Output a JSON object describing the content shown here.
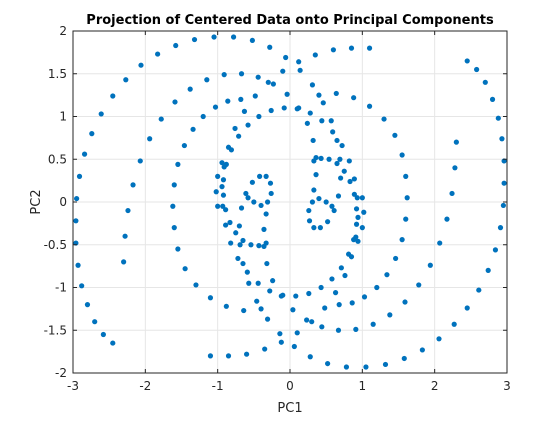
{
  "chart_data": {
    "type": "scatter",
    "title": "Projection of Centered Data onto Principal Components",
    "xlabel": "PC1",
    "ylabel": "PC2",
    "xlim": [
      -3,
      3
    ],
    "ylim": [
      -2,
      2
    ],
    "xticks": [
      -3,
      -2,
      -1,
      0,
      1,
      2,
      3
    ],
    "yticks": [
      -2,
      -1.5,
      -1,
      -0.5,
      0,
      0.5,
      1,
      1.5,
      2
    ],
    "xtick_labels": [
      "-3",
      "-2",
      "-1",
      "0",
      "1",
      "2",
      "3"
    ],
    "ytick_labels": [
      "-2",
      "-1.5",
      "-1",
      "-0.5",
      "0",
      "0.5",
      "1",
      "1.5",
      "2"
    ],
    "grid": true,
    "marker_color": "#0072BD",
    "series": [
      {
        "points": [
          [
            -2.45,
            -1.65
          ],
          [
            -2.58,
            -1.55
          ],
          [
            -2.7,
            -1.4
          ],
          [
            -2.8,
            -1.2
          ],
          [
            -2.88,
            -0.98
          ],
          [
            -2.93,
            -0.74
          ],
          [
            -2.96,
            -0.48
          ],
          [
            -2.96,
            -0.22
          ],
          [
            -2.95,
            0.04
          ],
          [
            -2.91,
            0.3
          ],
          [
            -2.84,
            0.56
          ],
          [
            -2.74,
            0.8
          ],
          [
            -2.61,
            1.03
          ],
          [
            -2.45,
            1.24
          ],
          [
            -2.27,
            1.43
          ],
          [
            -2.06,
            1.6
          ],
          [
            -1.83,
            1.73
          ],
          [
            -1.58,
            1.83
          ],
          [
            -1.32,
            1.9
          ],
          [
            -1.05,
            1.93
          ],
          [
            -0.78,
            1.93
          ],
          [
            -0.52,
            1.89
          ],
          [
            -0.28,
            1.81
          ],
          [
            -0.06,
            1.69
          ],
          [
            0.14,
            1.54
          ],
          [
            0.31,
            1.37
          ],
          [
            0.46,
            1.16
          ],
          [
            0.57,
            0.95
          ],
          [
            0.65,
            0.72
          ],
          [
            0.69,
            0.5
          ],
          [
            0.7,
            0.28
          ],
          [
            0.67,
            0.07
          ],
          [
            0.61,
            -0.1
          ],
          [
            0.52,
            -0.23
          ],
          [
            0.42,
            -0.3
          ],
          [
            0.33,
            -0.3
          ],
          [
            0.27,
            -0.22
          ],
          [
            0.26,
            -0.1
          ],
          [
            0.31,
            0.0
          ],
          [
            0.4,
            0.04
          ],
          [
            0.5,
            0.0
          ],
          [
            0.58,
            -0.05
          ],
          [
            2.45,
            1.65
          ],
          [
            2.58,
            1.55
          ],
          [
            2.7,
            1.4
          ],
          [
            2.8,
            1.2
          ],
          [
            2.88,
            0.98
          ],
          [
            2.93,
            0.74
          ],
          [
            2.96,
            0.48
          ],
          [
            2.96,
            0.22
          ],
          [
            2.95,
            -0.04
          ],
          [
            2.91,
            -0.3
          ],
          [
            2.84,
            -0.56
          ],
          [
            2.74,
            -0.8
          ],
          [
            2.61,
            -1.03
          ],
          [
            2.45,
            -1.24
          ],
          [
            2.27,
            -1.43
          ],
          [
            2.06,
            -1.6
          ],
          [
            1.83,
            -1.73
          ],
          [
            1.58,
            -1.83
          ],
          [
            1.32,
            -1.9
          ],
          [
            1.05,
            -1.93
          ],
          [
            0.78,
            -1.93
          ],
          [
            0.52,
            -1.89
          ],
          [
            0.28,
            -1.81
          ],
          [
            0.06,
            -1.69
          ],
          [
            -0.14,
            -1.54
          ],
          [
            -0.31,
            -1.37
          ],
          [
            -0.46,
            -1.16
          ],
          [
            -0.57,
            -0.95
          ],
          [
            -0.65,
            -0.72
          ],
          [
            -0.69,
            -0.5
          ],
          [
            -0.7,
            -0.28
          ],
          [
            -0.67,
            -0.07
          ],
          [
            -0.61,
            0.1
          ],
          [
            -0.52,
            0.23
          ],
          [
            -0.42,
            0.3
          ],
          [
            -0.33,
            0.3
          ],
          [
            -0.27,
            0.22
          ],
          [
            -0.26,
            0.1
          ],
          [
            -0.31,
            0.0
          ],
          [
            -0.4,
            -0.04
          ],
          [
            -0.5,
            0.0
          ],
          [
            -0.58,
            0.05
          ],
          [
            -1.1,
            -1.8
          ],
          [
            -0.85,
            -1.8
          ],
          [
            -0.6,
            -1.78
          ],
          [
            -0.35,
            -1.72
          ],
          [
            -0.12,
            -1.64
          ],
          [
            0.1,
            -1.53
          ],
          [
            0.3,
            -1.4
          ],
          [
            0.48,
            -1.24
          ],
          [
            0.63,
            -1.06
          ],
          [
            0.76,
            -0.86
          ],
          [
            0.85,
            -0.64
          ],
          [
            0.91,
            -0.41
          ],
          [
            0.94,
            -0.18
          ],
          [
            0.93,
            0.05
          ],
          [
            0.89,
            0.27
          ],
          [
            0.82,
            0.48
          ],
          [
            0.72,
            0.66
          ],
          [
            0.59,
            0.82
          ],
          [
            0.44,
            0.95
          ],
          [
            0.28,
            1.04
          ],
          [
            0.1,
            1.09
          ],
          [
            -0.08,
            1.1
          ],
          [
            -0.26,
            1.07
          ],
          [
            -0.43,
            1.0
          ],
          [
            -0.58,
            0.9
          ],
          [
            -0.71,
            0.77
          ],
          [
            -0.81,
            0.61
          ],
          [
            -0.88,
            0.44
          ],
          [
            -0.92,
            0.26
          ],
          [
            -0.92,
            0.08
          ],
          [
            -0.89,
            -0.09
          ],
          [
            -0.83,
            -0.24
          ],
          [
            -0.75,
            -0.36
          ],
          [
            -0.65,
            -0.45
          ],
          [
            -0.54,
            -0.5
          ],
          [
            -0.43,
            -0.51
          ],
          [
            -0.33,
            -0.48
          ],
          [
            1.1,
            1.8
          ],
          [
            0.85,
            1.8
          ],
          [
            0.6,
            1.78
          ],
          [
            0.35,
            1.72
          ],
          [
            0.12,
            1.64
          ],
          [
            -0.1,
            1.53
          ],
          [
            -0.3,
            1.4
          ],
          [
            -0.48,
            1.24
          ],
          [
            -0.63,
            1.06
          ],
          [
            -0.76,
            0.86
          ],
          [
            -0.85,
            0.64
          ],
          [
            -0.91,
            0.41
          ],
          [
            -0.94,
            0.18
          ],
          [
            -0.93,
            -0.05
          ],
          [
            -0.89,
            -0.27
          ],
          [
            -0.82,
            -0.48
          ],
          [
            -0.72,
            -0.66
          ],
          [
            -0.59,
            -0.82
          ],
          [
            -0.44,
            -0.95
          ],
          [
            -0.28,
            -1.04
          ],
          [
            -0.1,
            -1.09
          ],
          [
            0.08,
            -1.1
          ],
          [
            0.26,
            -1.07
          ],
          [
            0.43,
            -1.0
          ],
          [
            0.58,
            -0.9
          ],
          [
            0.71,
            -0.77
          ],
          [
            0.81,
            -0.61
          ],
          [
            0.88,
            -0.44
          ],
          [
            0.92,
            -0.26
          ],
          [
            0.92,
            -0.08
          ],
          [
            0.89,
            0.09
          ],
          [
            0.83,
            0.24
          ],
          [
            0.75,
            0.36
          ],
          [
            0.65,
            0.45
          ],
          [
            0.54,
            0.5
          ],
          [
            0.43,
            0.51
          ],
          [
            0.33,
            0.48
          ],
          [
            -2.3,
            -0.7
          ],
          [
            -2.28,
            -0.4
          ],
          [
            -2.24,
            -0.1
          ],
          [
            -2.17,
            0.2
          ],
          [
            -2.07,
            0.48
          ],
          [
            -1.94,
            0.74
          ],
          [
            -1.78,
            0.97
          ],
          [
            -1.59,
            1.17
          ],
          [
            -1.38,
            1.32
          ],
          [
            -1.15,
            1.43
          ],
          [
            -0.91,
            1.49
          ],
          [
            -0.67,
            1.5
          ],
          [
            -0.44,
            1.46
          ],
          [
            -0.23,
            1.38
          ],
          [
            -0.04,
            1.26
          ],
          [
            0.12,
            1.1
          ],
          [
            0.24,
            0.92
          ],
          [
            0.32,
            0.72
          ],
          [
            0.36,
            0.52
          ],
          [
            0.36,
            0.32
          ],
          [
            0.33,
            0.14
          ],
          [
            2.3,
            0.7
          ],
          [
            2.28,
            0.4
          ],
          [
            2.24,
            0.1
          ],
          [
            2.17,
            -0.2
          ],
          [
            2.07,
            -0.48
          ],
          [
            1.94,
            -0.74
          ],
          [
            1.78,
            -0.97
          ],
          [
            1.59,
            -1.17
          ],
          [
            1.38,
            -1.32
          ],
          [
            1.15,
            -1.43
          ],
          [
            0.91,
            -1.49
          ],
          [
            0.67,
            -1.5
          ],
          [
            0.44,
            -1.46
          ],
          [
            0.23,
            -1.38
          ],
          [
            0.04,
            -1.26
          ],
          [
            -0.12,
            -1.1
          ],
          [
            -0.24,
            -0.92
          ],
          [
            -0.32,
            -0.72
          ],
          [
            -0.36,
            -0.52
          ],
          [
            -0.36,
            -0.32
          ],
          [
            -0.33,
            -0.14
          ],
          [
            -1.6,
            -0.3
          ],
          [
            -1.62,
            -0.05
          ],
          [
            -1.6,
            0.2
          ],
          [
            -1.55,
            0.44
          ],
          [
            -1.46,
            0.66
          ],
          [
            -1.34,
            0.85
          ],
          [
            -1.2,
            1.0
          ],
          [
            -1.03,
            1.11
          ],
          [
            -0.86,
            1.18
          ],
          [
            -0.68,
            1.2
          ],
          [
            1.6,
            0.3
          ],
          [
            1.62,
            0.05
          ],
          [
            1.6,
            -0.2
          ],
          [
            1.55,
            -0.44
          ],
          [
            1.46,
            -0.66
          ],
          [
            1.34,
            -0.85
          ],
          [
            1.2,
            -1.0
          ],
          [
            1.03,
            -1.11
          ],
          [
            0.86,
            -1.18
          ],
          [
            0.68,
            -1.2
          ],
          [
            -1.55,
            -0.55
          ],
          [
            -1.45,
            -0.78
          ],
          [
            -1.3,
            -0.97
          ],
          [
            -1.1,
            -1.12
          ],
          [
            -0.88,
            -1.22
          ],
          [
            -0.64,
            -1.27
          ],
          [
            -0.4,
            -1.25
          ],
          [
            1.55,
            0.55
          ],
          [
            1.45,
            0.78
          ],
          [
            1.3,
            0.97
          ],
          [
            1.1,
            1.12
          ],
          [
            0.88,
            1.22
          ],
          [
            0.64,
            1.27
          ],
          [
            0.4,
            1.25
          ],
          [
            -1.0,
            -0.05
          ],
          [
            -1.02,
            0.12
          ],
          [
            -1.0,
            0.3
          ],
          [
            -0.94,
            0.46
          ],
          [
            1.0,
            0.05
          ],
          [
            1.02,
            -0.12
          ],
          [
            1.0,
            -0.3
          ],
          [
            0.94,
            -0.46
          ]
        ]
      }
    ]
  }
}
